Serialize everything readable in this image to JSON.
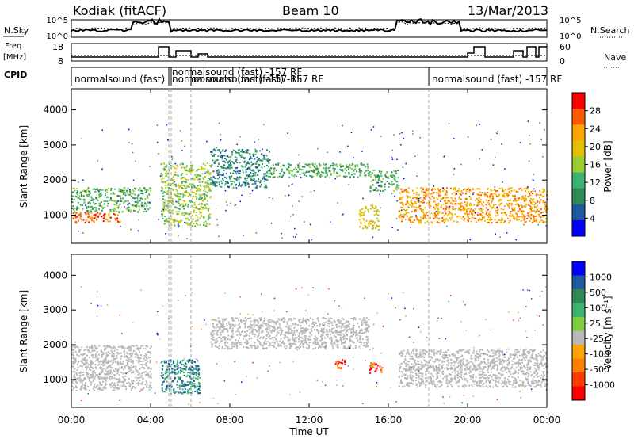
{
  "header": {
    "station": "Kodiak (fitACF)",
    "beam": "Beam 10",
    "date": "13/Mar/2013"
  },
  "panels": {
    "nsky": {
      "label": "N.Sky",
      "right_label": "N.Search",
      "ticks_left": [
        "10^5",
        "10^0"
      ],
      "ticks_right": [
        "10^5",
        "10^0"
      ]
    },
    "freq": {
      "label_line1": "Freq.",
      "label_line2": "[MHz]",
      "right_label": "Nave",
      "ticks_left": [
        "18",
        "8"
      ],
      "ticks_right": [
        "60",
        "0"
      ]
    },
    "cpid": {
      "label": "CPID",
      "segments": [
        {
          "text": "normalsound (fast)"
        },
        {
          "text": "normalsound (fast) -157 RF"
        },
        {
          "text": "normalsound (fast) -157 RF"
        },
        {
          "text": "normalsound (fast) -157 RF"
        },
        {
          "text": "normalsound (fast) -157 RF"
        }
      ]
    }
  },
  "power_colorbar": {
    "label": "Power [dB]",
    "ticks": [
      "28",
      "24",
      "20",
      "16",
      "12",
      "8",
      "4"
    ],
    "colors": [
      "#ff0000",
      "#ff5a00",
      "#ffa500",
      "#e6c000",
      "#9acd32",
      "#3cb371",
      "#2e8b57",
      "#1e5aa0",
      "#0000ff"
    ]
  },
  "velocity_colorbar": {
    "label": "Velocity [m s⁻¹]",
    "ticks": [
      "1000",
      "500",
      "100",
      "25",
      "-25",
      "-100",
      "-500",
      "-1000"
    ],
    "colors": [
      "#0000ff",
      "#1e5aa0",
      "#2e8b57",
      "#3cb371",
      "#7fd040",
      "#b8b8b8",
      "#ffa500",
      "#ff8000",
      "#ff3c00",
      "#ff0000"
    ]
  },
  "ground_scatter_color": "#b8b8b8",
  "chart_data": {
    "type": "heatmap",
    "xlabel": "Time UT",
    "ylabel": "Slant Range [km]",
    "x_ticks": [
      "00:00",
      "04:00",
      "08:00",
      "12:00",
      "16:00",
      "20:00",
      "00:00"
    ],
    "y_ticks": [
      "1000",
      "2000",
      "3000",
      "4000"
    ],
    "xlim_hours": [
      0,
      24
    ],
    "ylim_km": [
      200,
      4600
    ],
    "power_echo_bands": [
      {
        "t0": 0.0,
        "t1": 2.5,
        "r0": 800,
        "r1": 1100,
        "power_db": 28
      },
      {
        "t0": 0.0,
        "t1": 4.0,
        "r0": 1100,
        "r1": 1800,
        "power_db": 12
      },
      {
        "t0": 4.5,
        "t1": 7.0,
        "r0": 700,
        "r1": 2500,
        "power_db": 16
      },
      {
        "t0": 7.0,
        "t1": 10.0,
        "r0": 1800,
        "r1": 2900,
        "power_db": 8
      },
      {
        "t0": 10.0,
        "t1": 15.0,
        "r0": 2100,
        "r1": 2500,
        "power_db": 12
      },
      {
        "t0": 15.0,
        "t1": 16.5,
        "r0": 1700,
        "r1": 2300,
        "power_db": 12
      },
      {
        "t0": 14.5,
        "t1": 15.5,
        "r0": 600,
        "r1": 1300,
        "power_db": 20
      },
      {
        "t0": 16.5,
        "t1": 24.0,
        "r0": 800,
        "r1": 1800,
        "power_db": 24
      }
    ],
    "velocity_echo_bands": [
      {
        "t0": 0.0,
        "t1": 4.0,
        "r0": 700,
        "r1": 2000,
        "velocity": 0,
        "ground_scatter": true
      },
      {
        "t0": 4.5,
        "t1": 6.5,
        "r0": 600,
        "r1": 1600,
        "velocity": 100
      },
      {
        "t0": 7.0,
        "t1": 15.0,
        "r0": 1900,
        "r1": 2800,
        "velocity": 0,
        "ground_scatter": true
      },
      {
        "t0": 13.3,
        "t1": 13.8,
        "r0": 1300,
        "r1": 1600,
        "velocity": -500
      },
      {
        "t0": 15.0,
        "t1": 15.7,
        "r0": 1200,
        "r1": 1500,
        "velocity": -500
      },
      {
        "t0": 16.5,
        "t1": 24.0,
        "r0": 800,
        "r1": 1900,
        "velocity": 0,
        "ground_scatter": true
      }
    ]
  }
}
